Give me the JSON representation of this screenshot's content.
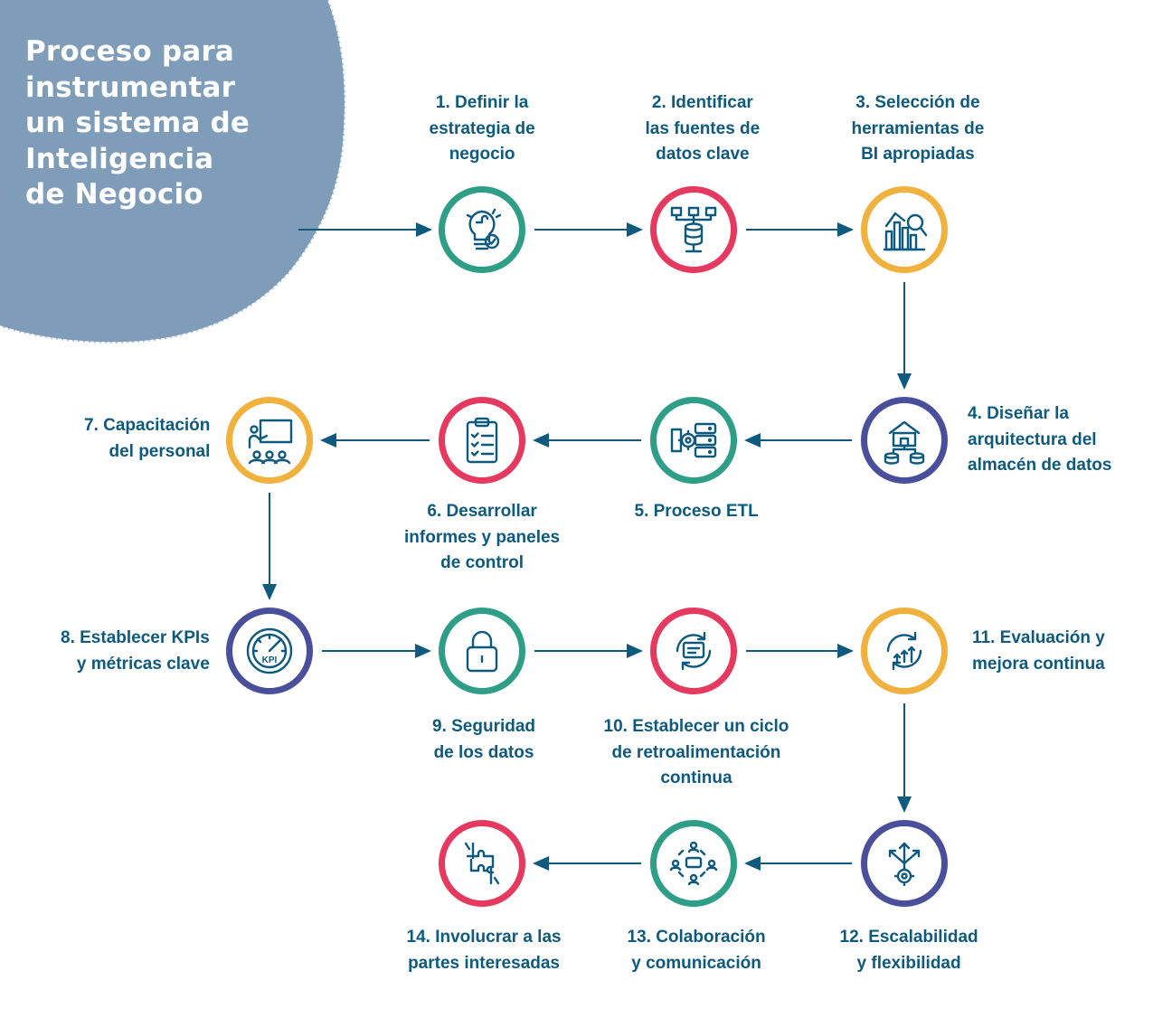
{
  "title_lines": [
    "Proceso para",
    "instrumentar",
    "un sistema de",
    "Inteligencia",
    "de Negocio"
  ],
  "colors": {
    "blob": "#7f9db9",
    "ink": "#0e5a7f",
    "green": "#2e9e87",
    "red": "#e6395f",
    "yellow": "#f0b23c",
    "blue": "#4a4f9c"
  },
  "steps": [
    {
      "id": 1,
      "lines": [
        "1. Definir la",
        "estrategia de",
        "negocio"
      ],
      "color": "green",
      "icon": "puzzle-bulb-icon"
    },
    {
      "id": 2,
      "lines": [
        "2. Identificar",
        "las fuentes de",
        "datos clave"
      ],
      "color": "red",
      "icon": "database-network-icon"
    },
    {
      "id": 3,
      "lines": [
        "3. Selección de",
        "herramientas de",
        "BI apropiadas"
      ],
      "color": "yellow",
      "icon": "chart-magnifier-icon"
    },
    {
      "id": 4,
      "lines": [
        "4. Diseñar la",
        "arquitectura del",
        "almacén de datos"
      ],
      "color": "blue",
      "icon": "warehouse-database-icon"
    },
    {
      "id": 5,
      "lines": [
        "5. Proceso ETL"
      ],
      "color": "green",
      "icon": "server-gear-icon"
    },
    {
      "id": 6,
      "lines": [
        "6. Desarrollar",
        "informes y paneles",
        "de control"
      ],
      "color": "red",
      "icon": "clipboard-checklist-icon"
    },
    {
      "id": 7,
      "lines": [
        "7. Capacitación",
        "del personal"
      ],
      "color": "yellow",
      "icon": "training-board-icon"
    },
    {
      "id": 8,
      "lines": [
        "8. Establecer KPIs",
        "y métricas clave"
      ],
      "color": "blue",
      "icon": "kpi-gauge-icon"
    },
    {
      "id": 9,
      "lines": [
        "9. Seguridad",
        "de los datos"
      ],
      "color": "green",
      "icon": "padlock-icon"
    },
    {
      "id": 10,
      "lines": [
        "10. Establecer un ciclo",
        "de retroalimentación",
        "continua"
      ],
      "color": "red",
      "icon": "feedback-cycle-icon"
    },
    {
      "id": 11,
      "lines": [
        "11. Evaluación y",
        "mejora continua"
      ],
      "color": "yellow",
      "icon": "growth-cycle-icon"
    },
    {
      "id": 12,
      "lines": [
        "12. Escalabilidad",
        "y flexibilidad"
      ],
      "color": "blue",
      "icon": "arrows-gear-icon"
    },
    {
      "id": 13,
      "lines": [
        "13. Colaboración",
        "y comunicación"
      ],
      "color": "green",
      "icon": "team-chat-icon"
    },
    {
      "id": 14,
      "lines": [
        "14. Involucrar a las",
        "partes interesadas"
      ],
      "color": "red",
      "icon": "puzzle-hands-icon"
    }
  ],
  "flow": [
    [
      1,
      2
    ],
    [
      2,
      3
    ],
    [
      3,
      4
    ],
    [
      4,
      5
    ],
    [
      5,
      6
    ],
    [
      6,
      7
    ],
    [
      7,
      8
    ],
    [
      8,
      9
    ],
    [
      9,
      10
    ],
    [
      10,
      11
    ],
    [
      11,
      12
    ],
    [
      12,
      13
    ],
    [
      13,
      14
    ]
  ]
}
